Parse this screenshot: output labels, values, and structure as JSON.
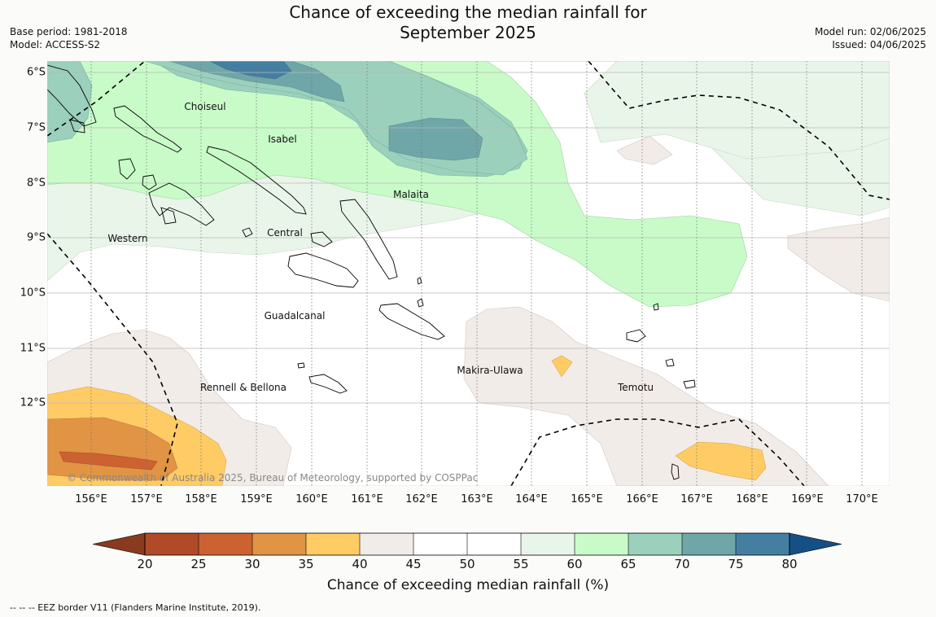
{
  "header": {
    "title_line1": "Chance of exceeding the median rainfall for",
    "title_line2": "September 2025",
    "base_period": "Base period: 1981-2018",
    "model": "Model: ACCESS-S2",
    "model_run": "Model run: 02/06/2025",
    "issued": "Issued: 04/06/2025"
  },
  "map": {
    "lat_labels": [
      "6°S",
      "7°S",
      "8°S",
      "9°S",
      "10°S",
      "11°S",
      "12°S"
    ],
    "lon_labels": [
      "156°E",
      "157°E",
      "158°E",
      "159°E",
      "160°E",
      "161°E",
      "162°E",
      "163°E",
      "164°E",
      "165°E",
      "166°E",
      "167°E",
      "168°E",
      "169°E",
      "170°E"
    ],
    "regions": {
      "choiseul": "Choiseul",
      "isabel": "Isabel",
      "malaita": "Malaita",
      "western": "Western",
      "central": "Central",
      "guadalcanal": "Guadalcanal",
      "makira_ulawa": "Makira-Ulawa",
      "temotu": "Temotu",
      "rennell_bellona": "Rennell & Bellona"
    },
    "copyright": "© Commonwealth of Australia 2025, Bureau of Meteorology, supported by COSPPac",
    "ocean_color": "#ffffff",
    "eez_line_style": "dashed"
  },
  "colorbar": {
    "ticks": [
      "20",
      "25",
      "30",
      "35",
      "40",
      "45",
      "50",
      "55",
      "60",
      "65",
      "70",
      "75",
      "80"
    ],
    "colors": [
      "#8a3a1e",
      "#b14a28",
      "#cc6232",
      "#e09444",
      "#fecb65",
      "#f2ece8",
      "#ffffff",
      "#ffffff",
      "#eaf5ea",
      "#c9fbc9",
      "#9bd0bc",
      "#6fa6a8",
      "#447fa2",
      "#164f86"
    ],
    "label": "Chance of exceeding median rainfall (%)"
  },
  "footnote": "--  --  -- EEZ border V11 (Flanders Marine Institute, 2019)."
}
